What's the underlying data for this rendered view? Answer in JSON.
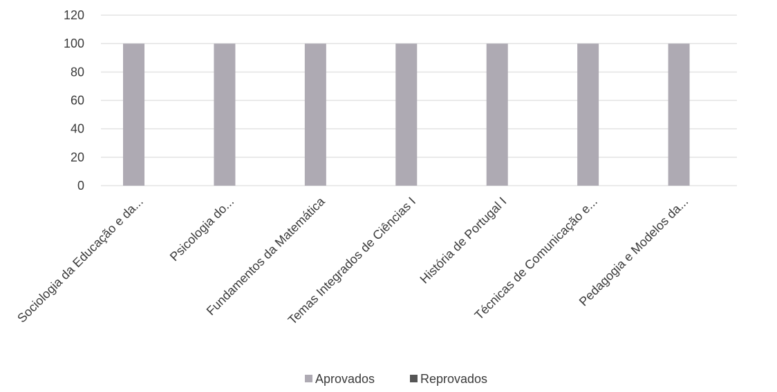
{
  "chart_data": {
    "type": "bar",
    "categories": [
      "Sociologia da Educação e da...",
      "Psicologia do...",
      "Fundamentos da Matemática",
      "Temas Integrados de Ciências I",
      "História de Portugal I",
      "Técnicas de Comunicação e...",
      "Pedagogia e Modelos da..."
    ],
    "series": [
      {
        "name": "Aprovados",
        "color": "#aeaab3",
        "values": [
          100,
          100,
          100,
          100,
          100,
          100,
          100
        ]
      },
      {
        "name": "Reprovados",
        "color": "#555555",
        "values": [
          0,
          0,
          0,
          0,
          0,
          0,
          0
        ]
      }
    ],
    "y_ticks": [
      "0",
      "20",
      "40",
      "60",
      "80",
      "100",
      "120"
    ],
    "ylim": [
      0,
      120
    ],
    "grid": true,
    "legend_position": "bottom"
  }
}
